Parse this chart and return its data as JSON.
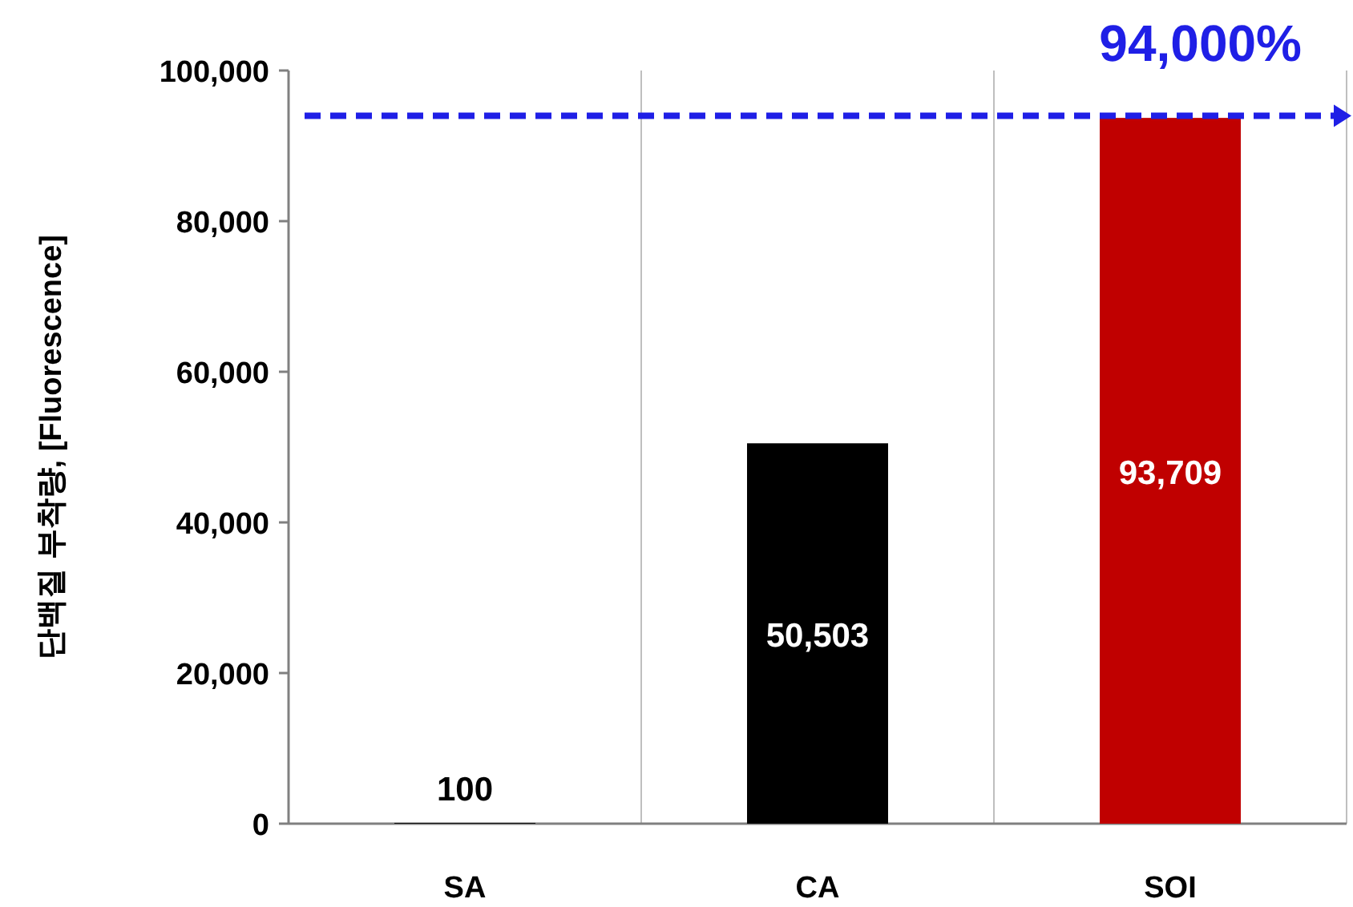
{
  "chart_data": {
    "type": "bar",
    "ylabel": "단백질 부착량, [Fluorescence]",
    "categories": [
      "SA",
      "CA",
      "SOI"
    ],
    "values": [
      100,
      50503,
      93709
    ],
    "colors": [
      "#000000",
      "#000000",
      "#c00000"
    ],
    "value_labels": [
      "100",
      "50,503",
      "93,709"
    ],
    "ylim": [
      0,
      100000
    ],
    "yticks": [
      {
        "value": 0,
        "label": "0"
      },
      {
        "value": 20000,
        "label": "20,000"
      },
      {
        "value": 40000,
        "label": "40,000"
      },
      {
        "value": 60000,
        "label": "60,000"
      },
      {
        "value": 80000,
        "label": "80,000"
      },
      {
        "value": 100000,
        "label": "100,000"
      }
    ],
    "ref_lines": [
      {
        "axis": "y",
        "value": 94000,
        "label": "94,000%",
        "color": "#1f1fe6",
        "line_style": "dashed"
      }
    ],
    "grid": "x"
  }
}
